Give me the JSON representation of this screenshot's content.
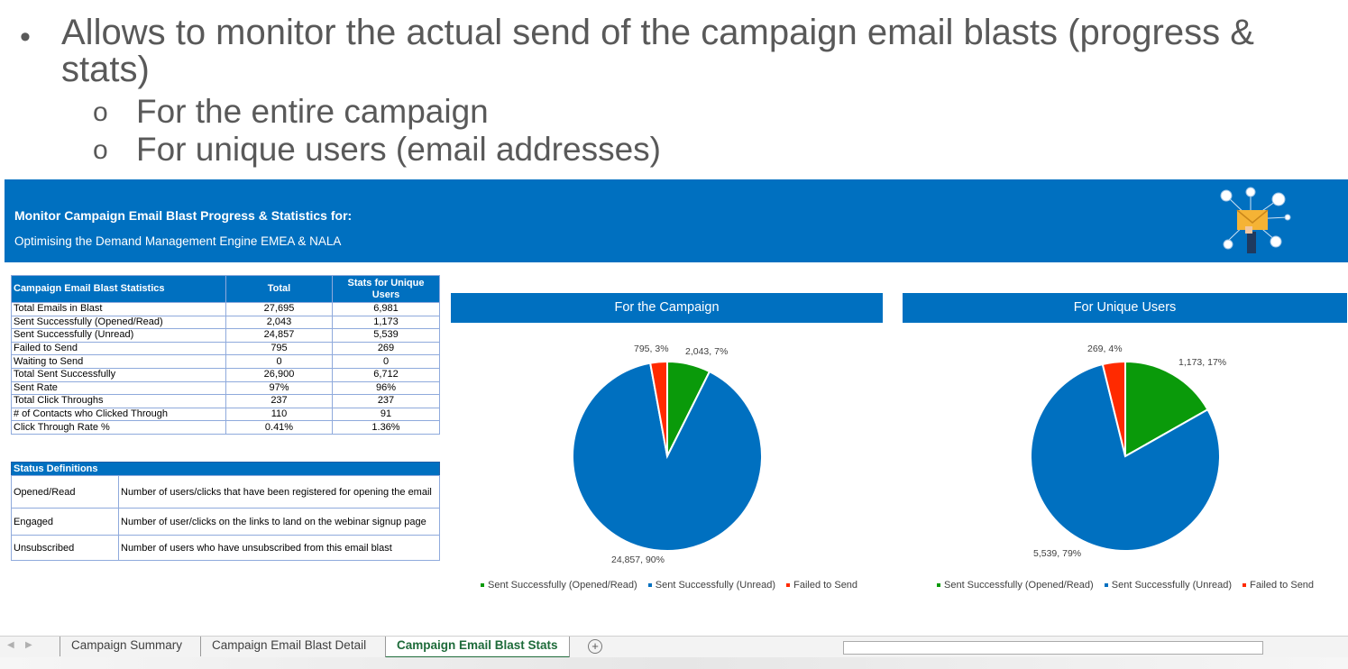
{
  "slide": {
    "bullet": "•",
    "sub_bullet": "o",
    "line1": "Allows to monitor the actual send of the campaign email blasts (progress & stats)",
    "sub1": "For the entire campaign",
    "sub2": "For unique users (email addresses)"
  },
  "banner": {
    "title": "Monitor Campaign Email Blast Progress & Statistics for:",
    "subtitle": "Optimising the Demand Management Engine EMEA & NALA"
  },
  "stats_table": {
    "headers": [
      "Campaign Email Blast Statistics",
      "Total",
      "Stats for Unique Users"
    ],
    "rows": [
      [
        "Total Emails in Blast",
        "27,695",
        "6,981"
      ],
      [
        "Sent Successfully (Opened/Read)",
        "2,043",
        "1,173"
      ],
      [
        "Sent Successfully (Unread)",
        "24,857",
        "5,539"
      ],
      [
        "Failed to Send",
        "795",
        "269"
      ],
      [
        "Waiting to Send",
        "0",
        "0"
      ],
      [
        "Total Sent Successfully",
        "26,900",
        "6,712"
      ],
      [
        "Sent Rate",
        "97%",
        "96%"
      ],
      [
        "Total Click Throughs",
        "237",
        "237"
      ],
      [
        "# of Contacts who Clicked Through",
        "110",
        "91"
      ],
      [
        "Click Through Rate %",
        "0.41%",
        "1.36%"
      ]
    ]
  },
  "definitions": {
    "header": "Status Definitions",
    "rows": [
      [
        "Opened/Read",
        "Number of users/clicks that have been registered for opening the email"
      ],
      [
        "Engaged",
        "Number of user/clicks on the links to land on the webinar signup page"
      ],
      [
        "Unsubscribed",
        "Number of users who have unsubscribed from this email blast"
      ]
    ]
  },
  "colors": {
    "opened": "#0a9a0a",
    "unread": "#0070c0",
    "failed": "#ff2a00",
    "header": "#0070c0"
  },
  "chart_data": [
    {
      "type": "pie",
      "title": "For the Campaign",
      "categories": [
        "Sent Successfully (Opened/Read)",
        "Sent Successfully (Unread)",
        "Failed to Send"
      ],
      "values": [
        2043,
        24857,
        795
      ],
      "labels": [
        "2,043, 7%",
        "24,857, 90%",
        "795, 3%"
      ],
      "legend": "bottom"
    },
    {
      "type": "pie",
      "title": "For Unique Users",
      "categories": [
        "Sent Successfully (Opened/Read)",
        "Sent Successfully (Unread)",
        "Failed to Send"
      ],
      "values": [
        1173,
        5539,
        269
      ],
      "labels": [
        "1,173, 17%",
        "5,539, 79%",
        "269, 4%"
      ],
      "legend": "bottom"
    }
  ],
  "tabs": {
    "items": [
      "Campaign Summary",
      "Campaign Email Blast Detail",
      "Campaign Email Blast Stats"
    ],
    "active": "Campaign Email Blast Stats",
    "add_symbol": "+"
  }
}
